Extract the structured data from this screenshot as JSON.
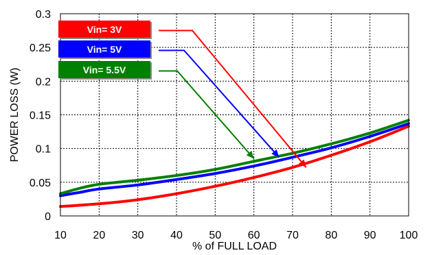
{
  "chart_data": {
    "type": "line",
    "xlabel": "% of FULL LOAD",
    "ylabel": "POWER LOSS (W)",
    "xlim": [
      10,
      100
    ],
    "ylim": [
      0,
      0.3
    ],
    "x_ticks": [
      10,
      20,
      30,
      40,
      50,
      60,
      70,
      80,
      90,
      100
    ],
    "y_ticks": [
      0,
      0.05,
      0.1,
      0.15,
      0.2,
      0.25,
      0.3
    ],
    "y_tick_labels": [
      "0",
      "0.05",
      "0.1",
      "0.15",
      "0.2",
      "0.25",
      "0.3"
    ],
    "grid": true,
    "legend": "top-left, with arrows pointing to curves",
    "series": [
      {
        "name": "Vin= 3V",
        "color": "#ff0000",
        "x": [
          10,
          20,
          30,
          40,
          50,
          60,
          70,
          80,
          90,
          100
        ],
        "y": [
          0.014,
          0.018,
          0.024,
          0.033,
          0.044,
          0.057,
          0.072,
          0.09,
          0.11,
          0.133
        ]
      },
      {
        "name": "Vin= 5V",
        "color": "#0000ff",
        "x": [
          10,
          15,
          20,
          30,
          40,
          50,
          60,
          70,
          80,
          90,
          100
        ],
        "y": [
          0.03,
          0.035,
          0.04,
          0.046,
          0.054,
          0.063,
          0.074,
          0.087,
          0.101,
          0.118,
          0.137
        ]
      },
      {
        "name": "Vin= 5.5V",
        "color": "#008000",
        "x": [
          10,
          15,
          20,
          30,
          40,
          50,
          60,
          70,
          80,
          90,
          100
        ],
        "y": [
          0.033,
          0.041,
          0.047,
          0.053,
          0.06,
          0.069,
          0.081,
          0.093,
          0.107,
          0.123,
          0.142
        ]
      }
    ],
    "arrows": [
      {
        "series": "Vin= 3V",
        "to": [
          73.5,
          0.072
        ]
      },
      {
        "series": "Vin= 5V",
        "to": [
          66.5,
          0.087
        ]
      },
      {
        "series": "Vin= 5.5V",
        "to": [
          60,
          0.085
        ]
      }
    ]
  }
}
